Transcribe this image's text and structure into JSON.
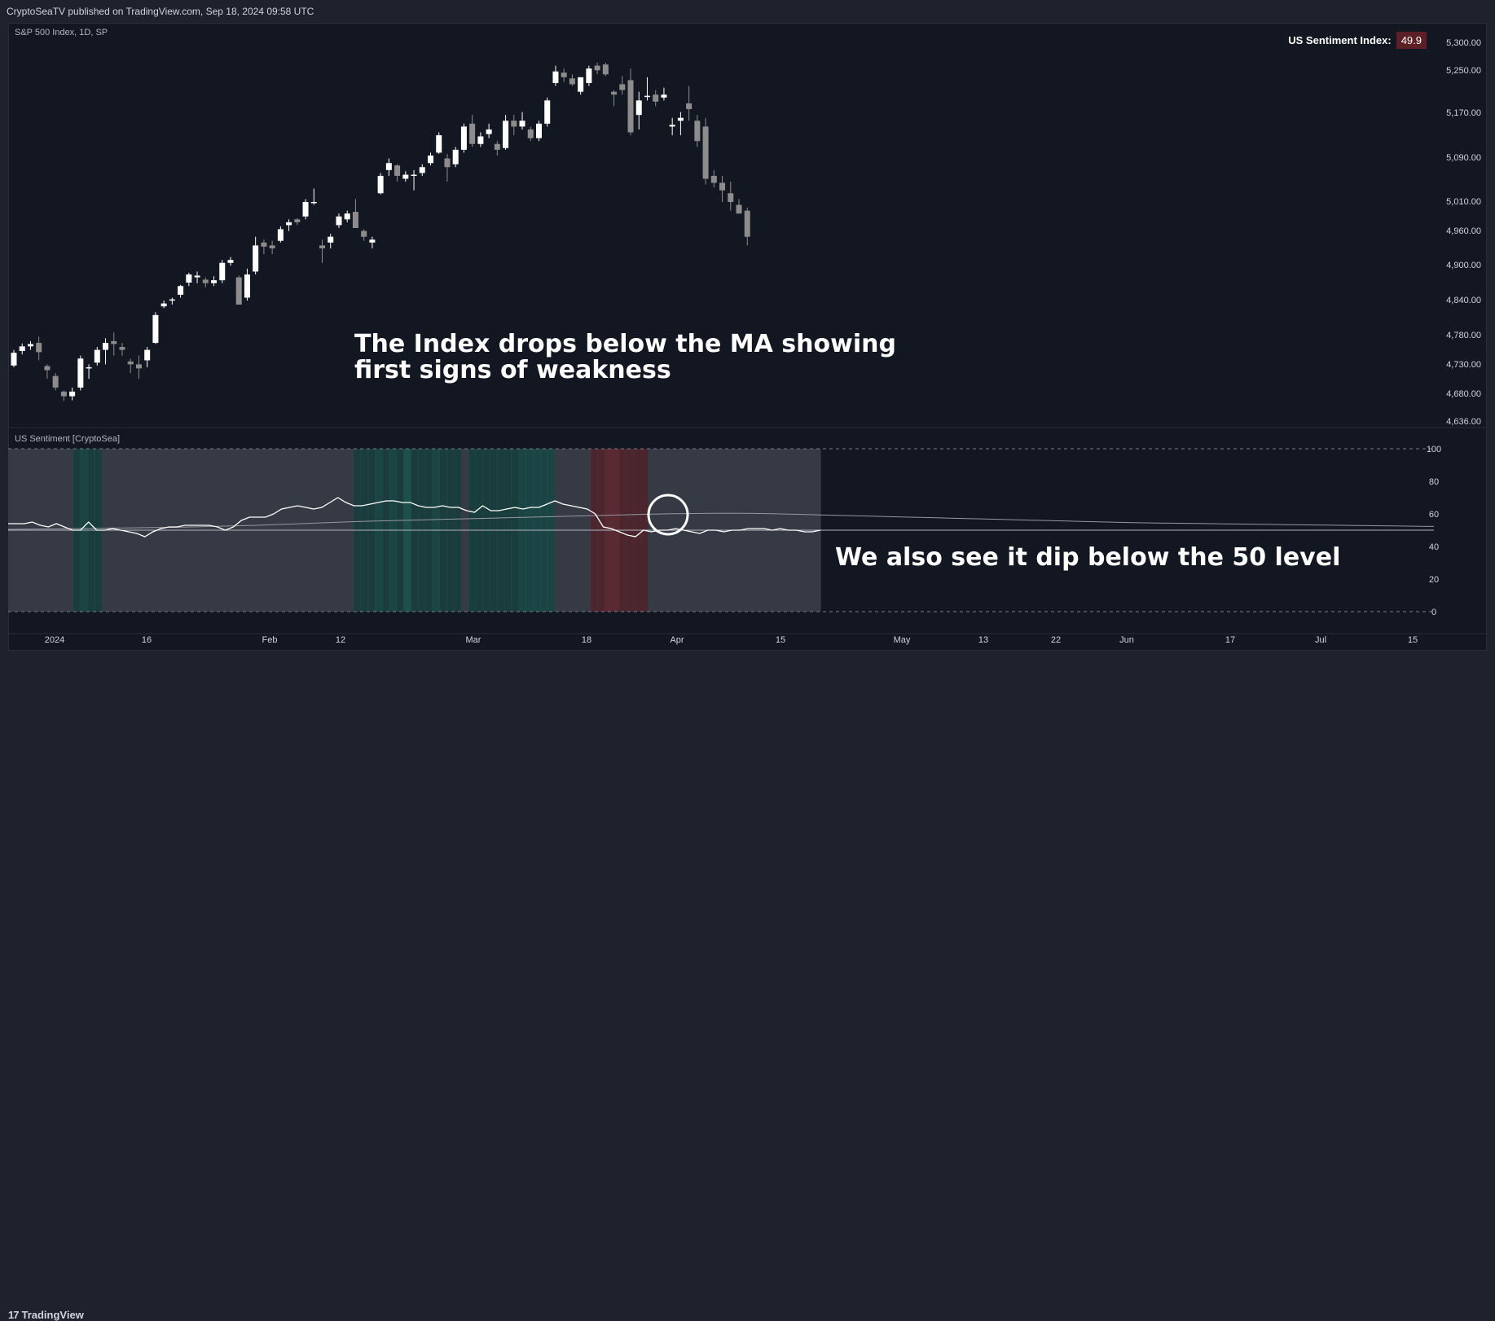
{
  "header": {
    "published": "CryptoSeaTV published on TradingView.com, Sep 18, 2024 09:58 UTC"
  },
  "footer": {
    "brand": "TradingView",
    "brand_mark": "17"
  },
  "colors": {
    "background": "#131722",
    "frame": "#1e222d",
    "text": "#d1d4dc",
    "candle_up": "#ffffff",
    "candle_down": "#8c8c8c",
    "sentiment_line": "#ffffff",
    "ma_line": "#9598a1",
    "bg_neutral": "#363a45",
    "bg_bull": "#1f5550",
    "bg_bear": "#5a2a33",
    "legend_value_bg": "#5b1f26"
  },
  "chart_data": [
    {
      "type": "candlestick",
      "title": "S&P 500 Index, 1D, SP",
      "legend": {
        "label": "US Sentiment Index:",
        "value": "49.9",
        "position": "top-right"
      },
      "y_ticks": [
        "5,300.00",
        "5,250.00",
        "5,170.00",
        "5,090.00",
        "5,010.00",
        "4,960.00",
        "4,900.00",
        "4,840.00",
        "4,780.00",
        "4,730.00",
        "4,680.00",
        "4,636.00"
      ],
      "ylim": [
        4636,
        5310
      ],
      "x_ticks": [
        "2024",
        "16",
        "Feb",
        "12",
        "Mar",
        "18",
        "Apr",
        "15",
        "May",
        "13",
        "22",
        "Jun",
        "17",
        "Jul",
        "15"
      ],
      "annotation": [
        "The Index drops below the MA showing",
        "first signs of weakness"
      ],
      "ohlc": [
        [
          4743,
          4770,
          4740,
          4765
        ],
        [
          4768,
          4781,
          4762,
          4776
        ],
        [
          4776,
          4785,
          4770,
          4780
        ],
        [
          4782,
          4793,
          4752,
          4766
        ],
        [
          4742,
          4745,
          4720,
          4735
        ],
        [
          4725,
          4730,
          4700,
          4705
        ],
        [
          4698,
          4700,
          4682,
          4690
        ],
        [
          4690,
          4705,
          4683,
          4698
        ],
        [
          4705,
          4760,
          4700,
          4755
        ],
        [
          4738,
          4745,
          4720,
          4740
        ],
        [
          4748,
          4775,
          4743,
          4770
        ],
        [
          4770,
          4790,
          4745,
          4782
        ],
        [
          4785,
          4800,
          4760,
          4780
        ],
        [
          4775,
          4782,
          4760,
          4770
        ],
        [
          4750,
          4755,
          4730,
          4745
        ],
        [
          4745,
          4760,
          4720,
          4738
        ],
        [
          4752,
          4775,
          4740,
          4770
        ],
        [
          4782,
          4835,
          4780,
          4830
        ],
        [
          4845,
          4855,
          4842,
          4850
        ],
        [
          4855,
          4860,
          4848,
          4857
        ],
        [
          4865,
          4882,
          4860,
          4880
        ],
        [
          4886,
          4903,
          4880,
          4900
        ],
        [
          4895,
          4905,
          4885,
          4898
        ],
        [
          4891,
          4895,
          4878,
          4885
        ],
        [
          4885,
          4897,
          4880,
          4890
        ],
        [
          4890,
          4925,
          4885,
          4920
        ],
        [
          4920,
          4930,
          4915,
          4925
        ],
        [
          4895,
          4898,
          4850,
          4848
        ],
        [
          4860,
          4910,
          4855,
          4900
        ],
        [
          4905,
          4965,
          4900,
          4950
        ],
        [
          4955,
          4960,
          4935,
          4948
        ],
        [
          4950,
          4958,
          4935,
          4945
        ],
        [
          4958,
          4983,
          4955,
          4978
        ],
        [
          4985,
          4995,
          4975,
          4990
        ],
        [
          4995,
          4997,
          4985,
          4990
        ],
        [
          5000,
          5030,
          4995,
          5025
        ],
        [
          5025,
          5048,
          5020,
          5025
        ],
        [
          4950,
          4960,
          4920,
          4945
        ],
        [
          4955,
          4970,
          4945,
          4965
        ],
        [
          4985,
          5005,
          4980,
          5000
        ],
        [
          4995,
          5010,
          4990,
          5005
        ],
        [
          5008,
          5030,
          4980,
          4980
        ],
        [
          4975,
          4978,
          4958,
          4965
        ],
        [
          4955,
          4965,
          4945,
          4960
        ],
        [
          5040,
          5075,
          5038,
          5070
        ],
        [
          5080,
          5100,
          5070,
          5092
        ],
        [
          5088,
          5090,
          5060,
          5070
        ],
        [
          5065,
          5078,
          5060,
          5072
        ],
        [
          5070,
          5080,
          5045,
          5072
        ],
        [
          5075,
          5090,
          5070,
          5085
        ],
        [
          5092,
          5110,
          5088,
          5105
        ],
        [
          5110,
          5145,
          5108,
          5140
        ],
        [
          5100,
          5108,
          5060,
          5085
        ],
        [
          5090,
          5120,
          5085,
          5115
        ],
        [
          5115,
          5160,
          5110,
          5155
        ],
        [
          5160,
          5175,
          5120,
          5125
        ],
        [
          5125,
          5145,
          5120,
          5138
        ],
        [
          5142,
          5160,
          5135,
          5150
        ],
        [
          5125,
          5130,
          5105,
          5115
        ],
        [
          5118,
          5175,
          5115,
          5165
        ],
        [
          5165,
          5175,
          5140,
          5155
        ],
        [
          5155,
          5180,
          5150,
          5165
        ],
        [
          5150,
          5155,
          5130,
          5135
        ],
        [
          5135,
          5165,
          5130,
          5160
        ],
        [
          5160,
          5205,
          5155,
          5200
        ],
        [
          5230,
          5260,
          5225,
          5250
        ],
        [
          5248,
          5255,
          5232,
          5240
        ],
        [
          5238,
          5245,
          5225,
          5228
        ],
        [
          5215,
          5240,
          5210,
          5240
        ],
        [
          5230,
          5260,
          5225,
          5255
        ],
        [
          5260,
          5265,
          5245,
          5252
        ],
        [
          5262,
          5265,
          5242,
          5245
        ],
        [
          5215,
          5218,
          5190,
          5210
        ],
        [
          5228,
          5242,
          5210,
          5218
        ],
        [
          5235,
          5255,
          5140,
          5145
        ],
        [
          5175,
          5215,
          5150,
          5200
        ],
        [
          5208,
          5240,
          5200,
          5208
        ],
        [
          5210,
          5218,
          5190,
          5198
        ],
        [
          5205,
          5222,
          5200,
          5210
        ],
        [
          5155,
          5170,
          5140,
          5158
        ],
        [
          5165,
          5180,
          5140,
          5170
        ],
        [
          5195,
          5225,
          5165,
          5185
        ],
        [
          5165,
          5175,
          5120,
          5130
        ],
        [
          5155,
          5170,
          5055,
          5065
        ],
        [
          5070,
          5080,
          5050,
          5058
        ],
        [
          5058,
          5070,
          5025,
          5045
        ],
        [
          5040,
          5060,
          5010,
          5025
        ],
        [
          5020,
          5030,
          5005,
          5005
        ],
        [
          5010,
          5015,
          4950,
          4965
        ]
      ]
    },
    {
      "type": "line",
      "title": "US Sentiment [CryptoSea]",
      "y_ticks": [
        "100",
        "80",
        "60",
        "40",
        "20",
        "0"
      ],
      "ylim": [
        0,
        100
      ],
      "reference_levels": [
        100,
        50,
        0
      ],
      "annotation": "We also see it dip below the 50 level",
      "series": [
        {
          "values": [
            54,
            54,
            54,
            55,
            53,
            52,
            54,
            52,
            50,
            50,
            55,
            50,
            50,
            51,
            50,
            49,
            48,
            46,
            49,
            51,
            52,
            52,
            53,
            53,
            53,
            53,
            52,
            50,
            52,
            56,
            58,
            58,
            58,
            60,
            63,
            64,
            65,
            64,
            63,
            64,
            67,
            70,
            67,
            65,
            65,
            66,
            67,
            68,
            68,
            67,
            67,
            65,
            64,
            64,
            65,
            64,
            64,
            62,
            61,
            65,
            62,
            62,
            63,
            64,
            63,
            64,
            64,
            66,
            68,
            66,
            65,
            64,
            63,
            60,
            52,
            51,
            49,
            47,
            46,
            50,
            49,
            50,
            50,
            51,
            50,
            49,
            48,
            50,
            50,
            49,
            50,
            50,
            51,
            51,
            51,
            50,
            51,
            50,
            50,
            49,
            49,
            50
          ]
        },
        {
          "values": [
            50.5,
            50.6,
            50.7,
            50.8,
            50.9,
            51.0,
            51.1,
            51.2,
            51.3,
            51.4,
            51.5,
            51.6,
            51.7,
            51.8,
            52.0,
            52.2,
            52.4,
            52.6,
            52.8,
            53.0,
            53.3,
            53.6,
            53.9,
            54.2,
            54.5,
            54.8,
            55.1,
            55.4,
            55.6,
            55.8,
            56.0,
            56.2,
            56.4,
            56.6,
            56.8,
            57.0,
            57.2,
            57.4,
            57.6,
            57.8,
            58.0,
            58.2,
            58.4,
            58.6,
            58.8,
            59.0,
            59.2,
            59.4,
            59.6,
            59.8,
            60.0,
            60.1,
            60.2,
            60.3,
            60.4,
            60.4,
            60.4,
            60.3,
            60.2,
            60.0,
            59.8,
            59.6,
            59.4,
            59.2,
            59.0,
            58.8,
            58.6,
            58.4,
            58.2,
            58.0,
            57.8,
            57.6,
            57.4,
            57.2,
            57.0,
            56.8,
            56.6,
            56.4,
            56.2,
            56.0,
            55.8,
            55.6,
            55.4,
            55.2,
            55.0,
            54.8,
            54.6,
            54.5,
            54.4,
            54.3,
            54.2,
            54.1,
            54.0,
            53.9,
            53.8,
            53.7,
            53.6,
            53.5,
            53.4,
            53.3,
            53.2,
            53.1,
            53.0,
            52.9,
            52.8,
            52.7,
            52.6,
            52.5,
            52.4,
            52.3
          ]
        }
      ],
      "background_bands": [
        0,
        0,
        0,
        0,
        0,
        0,
        0,
        0,
        0,
        1,
        2,
        1,
        1,
        0,
        0,
        0,
        0,
        0,
        0,
        0,
        0,
        0,
        0,
        0,
        0,
        0,
        0,
        0,
        0,
        0,
        0,
        0,
        0,
        0,
        0,
        0,
        0,
        0,
        0,
        0,
        0,
        0,
        0,
        0,
        0,
        0,
        0,
        0,
        1,
        1,
        1,
        2,
        1,
        2,
        1,
        3,
        1,
        1,
        1,
        2,
        1,
        1,
        1,
        0,
        1,
        1,
        1,
        1,
        1,
        1,
        1,
        2,
        2,
        2,
        2,
        2,
        0,
        0,
        0,
        0,
        0,
        -1,
        -1,
        -2,
        -2,
        -1,
        -1,
        -1,
        -1,
        0,
        0,
        0,
        0,
        0,
        0,
        0,
        0,
        0,
        0,
        0,
        0,
        0,
        0,
        0,
        0,
        0,
        0,
        0,
        0,
        0,
        0,
        0,
        0
      ]
    }
  ]
}
